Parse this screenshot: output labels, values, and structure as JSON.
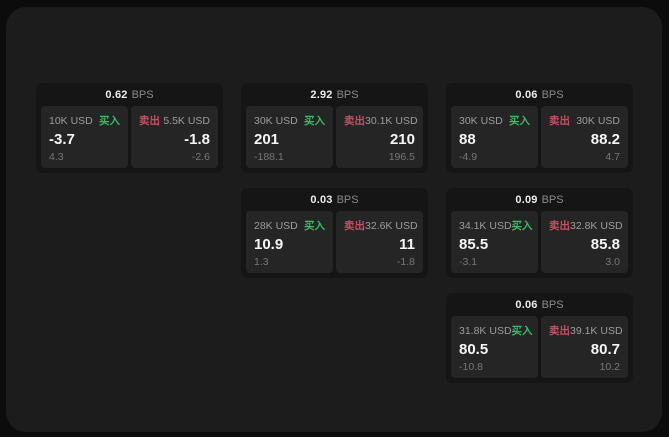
{
  "labels": {
    "bps_unit": "BPS",
    "buy": "买入",
    "sell": "卖出"
  },
  "colors": {
    "buy": "#3fb863",
    "sell": "#c44f63",
    "window_bg": "#1c1c1c",
    "card_bg": "#151515",
    "tile_bg": "#252525"
  },
  "cards": [
    {
      "bps": "0.62",
      "grid": {
        "col": 0,
        "row": 0
      },
      "buy": {
        "amount": "10K USD",
        "price": "-3.7",
        "delta": "4.3"
      },
      "sell": {
        "amount": "5.5K USD",
        "price": "-1.8",
        "delta": "-2.6"
      }
    },
    {
      "bps": "2.92",
      "grid": {
        "col": 1,
        "row": 0
      },
      "buy": {
        "amount": "30K USD",
        "price": "201",
        "delta": "-188.1"
      },
      "sell": {
        "amount": "30.1K USD",
        "price": "210",
        "delta": "196.5"
      }
    },
    {
      "bps": "0.06",
      "grid": {
        "col": 2,
        "row": 0
      },
      "buy": {
        "amount": "30K USD",
        "price": "88",
        "delta": "-4.9"
      },
      "sell": {
        "amount": "30K USD",
        "price": "88.2",
        "delta": "4.7"
      }
    },
    {
      "bps": "0.03",
      "grid": {
        "col": 1,
        "row": 1
      },
      "buy": {
        "amount": "28K USD",
        "price": "10.9",
        "delta": "1.3"
      },
      "sell": {
        "amount": "32.6K USD",
        "price": "11",
        "delta": "-1.8"
      }
    },
    {
      "bps": "0.09",
      "grid": {
        "col": 2,
        "row": 1
      },
      "buy": {
        "amount": "34.1K USD",
        "price": "85.5",
        "delta": "-3.1"
      },
      "sell": {
        "amount": "32.8K USD",
        "price": "85.8",
        "delta": "3.0"
      }
    },
    {
      "bps": "0.06",
      "grid": {
        "col": 2,
        "row": 2
      },
      "buy": {
        "amount": "31.8K USD",
        "price": "80.5",
        "delta": "-10.8"
      },
      "sell": {
        "amount": "39.1K USD",
        "price": "80.7",
        "delta": "10.2"
      }
    }
  ]
}
